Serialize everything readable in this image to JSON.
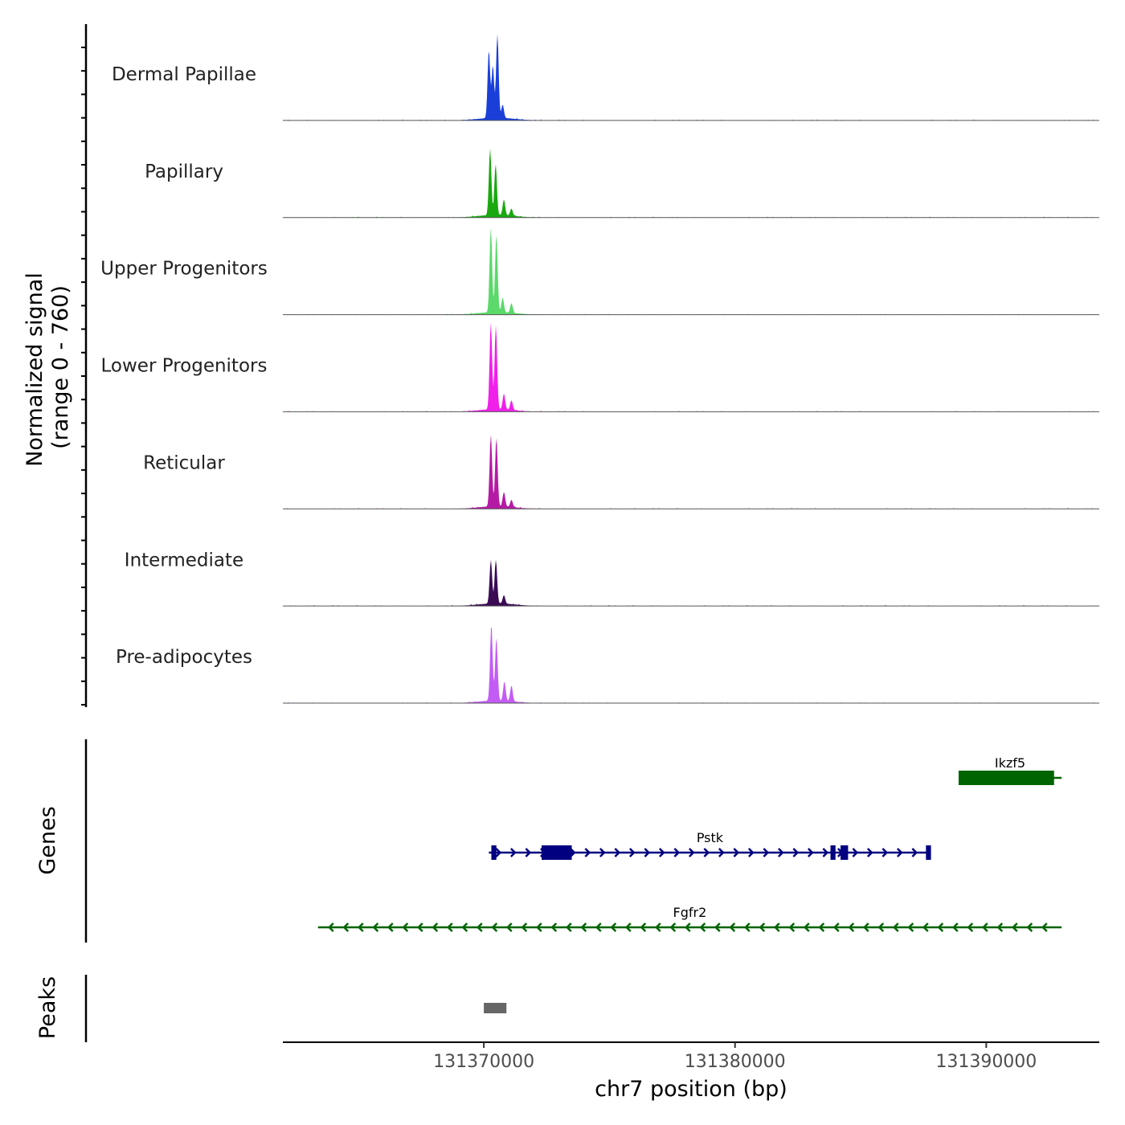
{
  "chart_data": {
    "type": "area",
    "title": "",
    "y_axis_label_line1": "Normalized signal",
    "y_axis_label_line2": "(range 0 - 760)",
    "signal_range": [
      0,
      760
    ],
    "xlabel": "chr7 position (bp)",
    "xlim": [
      131362000,
      131394500
    ],
    "x_ticks": [
      131370000,
      131380000,
      131390000
    ],
    "x_tick_labels": [
      "131370000",
      "131380000",
      "131390000"
    ],
    "tracks": [
      {
        "name": "Dermal Papillae",
        "color": "#1a3fd9",
        "peaks": [
          [
            131370200,
            560
          ],
          [
            131370360,
            430
          ],
          [
            131370540,
            690
          ],
          [
            131370750,
            110
          ]
        ]
      },
      {
        "name": "Papillary",
        "color": "#1aa80f",
        "peaks": [
          [
            131370250,
            550
          ],
          [
            131370470,
            420
          ],
          [
            131370800,
            130
          ],
          [
            131371100,
            60
          ]
        ]
      },
      {
        "name": "Upper Progenitors",
        "color": "#5bd96b",
        "peaks": [
          [
            131370280,
            700
          ],
          [
            131370500,
            640
          ],
          [
            131370750,
            120
          ],
          [
            131371100,
            80
          ]
        ]
      },
      {
        "name": "Lower Progenitors",
        "color": "#f020ea",
        "peaks": [
          [
            131370280,
            720
          ],
          [
            131370480,
            690
          ],
          [
            131370800,
            130
          ],
          [
            131371100,
            80
          ]
        ]
      },
      {
        "name": "Reticular",
        "color": "#b51aa5",
        "peaks": [
          [
            131370280,
            590
          ],
          [
            131370500,
            560
          ],
          [
            131370800,
            120
          ],
          [
            131371100,
            60
          ]
        ]
      },
      {
        "name": "Intermediate",
        "color": "#3a0a55",
        "peaks": [
          [
            131370280,
            360
          ],
          [
            131370480,
            360
          ],
          [
            131370800,
            70
          ]
        ]
      },
      {
        "name": "Pre-adipocytes",
        "color": "#c35cf5",
        "peaks": [
          [
            131370300,
            630
          ],
          [
            131370500,
            520
          ],
          [
            131370820,
            160
          ],
          [
            131371100,
            130
          ]
        ]
      }
    ],
    "genes_label": "Genes",
    "genes": [
      {
        "name": "Ikzf5",
        "strand": "-",
        "start": 131388900,
        "end": 131393000,
        "color": "#006400",
        "exons": [
          [
            131388900,
            131392700
          ]
        ]
      },
      {
        "name": "Pstk",
        "strand": "+",
        "start": 131370200,
        "end": 131387800,
        "color": "#000080",
        "exons": [
          [
            131370300,
            131370500
          ],
          [
            131372300,
            131373500
          ],
          [
            131383800,
            131384000
          ],
          [
            131384200,
            131384500
          ],
          [
            131387600,
            131387800
          ]
        ]
      },
      {
        "name": "Fgfr2",
        "strand": "-",
        "start": 131363400,
        "end": 131393000,
        "color": "#006400",
        "exons": []
      }
    ],
    "peaks_label": "Peaks",
    "peak_regions": [
      [
        131370000,
        131370900
      ]
    ],
    "peak_color": "#666666"
  }
}
